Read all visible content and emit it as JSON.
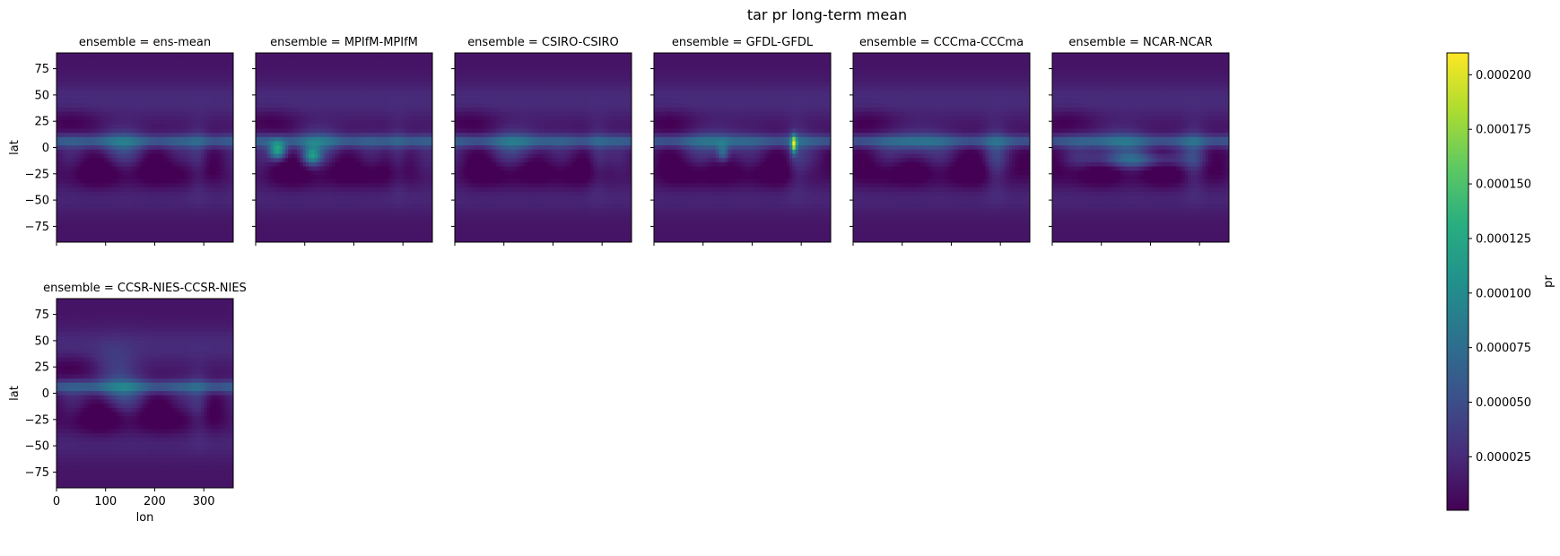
{
  "chart_data": {
    "type": "heatmap",
    "title": "tar pr long-term mean",
    "facet_variable": "ensemble",
    "panels": [
      {
        "ensemble": "ens-mean",
        "title": "ensemble = ens-mean"
      },
      {
        "ensemble": "MPIfM-MPIfM",
        "title": "ensemble = MPIfM-MPIfM"
      },
      {
        "ensemble": "CSIRO-CSIRO",
        "title": "ensemble = CSIRO-CSIRO"
      },
      {
        "ensemble": "GFDL-GFDL",
        "title": "ensemble = GFDL-GFDL"
      },
      {
        "ensemble": "CCCma-CCCma",
        "title": "ensemble = CCCma-CCCma"
      },
      {
        "ensemble": "NCAR-NCAR",
        "title": "ensemble = NCAR-NCAR"
      },
      {
        "ensemble": "CCSR-NIES-CCSR-NIES",
        "title": "ensemble = CCSR-NIES-CCSR-NIES"
      }
    ],
    "xlabel": "lon",
    "ylabel": "lat",
    "xlim": [
      0,
      360
    ],
    "ylim": [
      -90,
      90
    ],
    "x_ticks": [
      0,
      100,
      200,
      300
    ],
    "y_ticks": [
      75,
      50,
      25,
      0,
      -25,
      -50,
      -75
    ],
    "x_tick_labels": [
      "0",
      "100",
      "200",
      "300"
    ],
    "y_tick_labels": [
      "75",
      "50",
      "25",
      "0",
      "−25",
      "−50",
      "−75"
    ],
    "colorbar": {
      "label": "pr",
      "colormap": "viridis",
      "vmin": 5e-07,
      "vmax": 0.00021,
      "ticks": [
        2.5e-05,
        5e-05,
        7.5e-05,
        0.0001,
        0.000125,
        0.00015,
        0.000175,
        0.0002
      ],
      "tick_labels": [
        "0.000025",
        "0.000050",
        "0.000075",
        "0.000100",
        "0.000125",
        "0.000150",
        "0.000175",
        "0.000200"
      ]
    }
  }
}
